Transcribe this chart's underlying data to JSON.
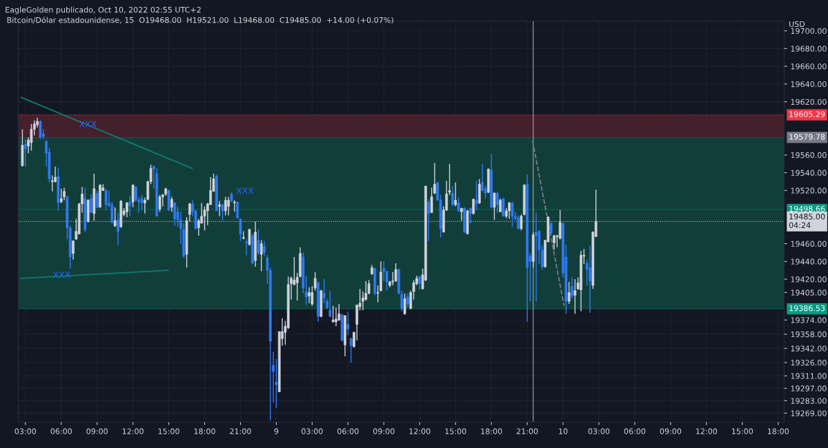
{
  "chart_data": {
    "type": "candlestick",
    "title": "EagleGolden publicado, Oct 10, 2022 02:55 UTC+2",
    "subtitle": "Bitcoin/Dólar estadounidense, 15  O19468.00  H19521.00  L19468.00  C19485.00  +14.00 (+0.07%)",
    "ylabel": "USD",
    "xlim": [
      "2022-10-08T02:24",
      "2022-10-10T18:30"
    ],
    "ylim": [
      19259,
      19711
    ],
    "xticks": [
      {
        "value": "2022-10-08T03:00",
        "label": "03:00"
      },
      {
        "value": "2022-10-08T06:00",
        "label": "06:00"
      },
      {
        "value": "2022-10-08T09:00",
        "label": "09:00"
      },
      {
        "value": "2022-10-08T12:00",
        "label": "12:00"
      },
      {
        "value": "2022-10-08T15:00",
        "label": "15:00"
      },
      {
        "value": "2022-10-08T18:00",
        "label": "18:00"
      },
      {
        "value": "2022-10-08T21:00",
        "label": "21:00"
      },
      {
        "value": "2022-10-09T00:00",
        "label": "9"
      },
      {
        "value": "2022-10-09T03:00",
        "label": "03:00"
      },
      {
        "value": "2022-10-09T06:00",
        "label": "06:00"
      },
      {
        "value": "2022-10-09T09:00",
        "label": "09:00"
      },
      {
        "value": "2022-10-09T12:00",
        "label": "12:00"
      },
      {
        "value": "2022-10-09T15:00",
        "label": "15:00"
      },
      {
        "value": "2022-10-09T18:00",
        "label": "18:00"
      },
      {
        "value": "2022-10-09T21:00",
        "label": "21:00"
      },
      {
        "value": "2022-10-10T00:00",
        "label": "10"
      },
      {
        "value": "2022-10-10T03:00",
        "label": "03:00"
      },
      {
        "value": "2022-10-10T06:00",
        "label": "06:00"
      },
      {
        "value": "2022-10-10T09:00",
        "label": "09:00"
      },
      {
        "value": "2022-10-10T12:00",
        "label": "12:00"
      },
      {
        "value": "2022-10-10T15:00",
        "label": "15:00"
      },
      {
        "value": "2022-10-10T18:00",
        "label": "18:00"
      }
    ],
    "yticks": [
      {
        "value": 19269,
        "label": "19269.00"
      },
      {
        "value": 19283,
        "label": "19283.00"
      },
      {
        "value": 19297,
        "label": "19297.00"
      },
      {
        "value": 19311,
        "label": "19311.00"
      },
      {
        "value": 19326,
        "label": "19326.00"
      },
      {
        "value": 19342,
        "label": "19342.00"
      },
      {
        "value": 19358,
        "label": "19358.00"
      },
      {
        "value": 19374,
        "label": "19374.00"
      },
      {
        "value": 19405,
        "label": "19405.00"
      },
      {
        "value": 19420,
        "label": "19420.00"
      },
      {
        "value": 19440,
        "label": "19440.00"
      },
      {
        "value": 19460,
        "label": "19460.00"
      },
      {
        "value": 19520,
        "label": "19520.00"
      },
      {
        "value": 19540,
        "label": "19540.00"
      },
      {
        "value": 19560,
        "label": "19560.00"
      },
      {
        "value": 19620,
        "label": "19620.00"
      },
      {
        "value": 19640,
        "label": "19640.00"
      },
      {
        "value": 19660,
        "label": "19660.00"
      },
      {
        "value": 19680,
        "label": "19680.00"
      },
      {
        "value": 19700,
        "label": "19700.00"
      }
    ],
    "grid": true,
    "bands": [
      {
        "axis": "y",
        "from": 19579.78,
        "to": 19605.29,
        "color": "#43202b"
      },
      {
        "axis": "y",
        "from": 19386.53,
        "to": 19579.78,
        "color": "#123e3a"
      }
    ],
    "series": [
      {
        "type": "line",
        "color": "#0f7e74",
        "x": [
          "2022-10-08T02:39",
          "2022-10-08T16:57"
        ],
        "values": [
          19625,
          19545
        ]
      },
      {
        "type": "line",
        "color": "#0f7e74",
        "x": [
          "2022-10-08T02:39",
          "2022-10-08T14:57"
        ],
        "values": [
          19421,
          19430
        ]
      },
      {
        "type": "line",
        "color": "#787b86",
        "line_style": "dashed",
        "x": [
          "2022-10-09T21:27",
          "2022-10-10T00:05"
        ],
        "values": [
          19576,
          19390
        ]
      },
      {
        "color": "#d1d4dc",
        "x": [
          "2022-10-08T02:45",
          "2022-10-08T03:15",
          "2022-10-08T03:30",
          "2022-10-08T03:45",
          "2022-10-08T04:00",
          "2022-10-08T05:15",
          "2022-10-08T05:30",
          "2022-10-08T06:00",
          "2022-10-08T06:15",
          "2022-10-08T07:00",
          "2022-10-08T07:15",
          "2022-10-08T07:30",
          "2022-10-08T07:45",
          "2022-10-08T08:15",
          "2022-10-08T08:45",
          "2022-10-08T09:15",
          "2022-10-08T09:30",
          "2022-10-08T10:30",
          "2022-10-08T11:00",
          "2022-10-08T11:15",
          "2022-10-08T11:30",
          "2022-10-08T12:00",
          "2022-10-08T13:00",
          "2022-10-08T13:15",
          "2022-10-08T13:30",
          "2022-10-08T14:15",
          "2022-10-08T14:30",
          "2022-10-08T14:45",
          "2022-10-08T15:15",
          "2022-10-08T16:30",
          "2022-10-08T16:45",
          "2022-10-08T17:30",
          "2022-10-08T17:45",
          "2022-10-08T18:00",
          "2022-10-08T18:15",
          "2022-10-08T18:30",
          "2022-10-08T18:45",
          "2022-10-08T19:15",
          "2022-10-08T19:45",
          "2022-10-08T20:00",
          "2022-10-08T20:30",
          "2022-10-08T21:15",
          "2022-10-08T21:45",
          "2022-10-08T22:15",
          "2022-10-08T22:45",
          "2022-10-09T00:15",
          "2022-10-09T00:30",
          "2022-10-09T00:45",
          "2022-10-09T01:00",
          "2022-10-09T01:15",
          "2022-10-09T01:30",
          "2022-10-09T01:45",
          "2022-10-09T02:00",
          "2022-10-09T02:45",
          "2022-10-09T03:00",
          "2022-10-09T03:15",
          "2022-10-09T03:45",
          "2022-10-09T04:45",
          "2022-10-09T05:00",
          "2022-10-09T05:15",
          "2022-10-09T05:45",
          "2022-10-09T06:30",
          "2022-10-09T06:45",
          "2022-10-09T07:00",
          "2022-10-09T07:15",
          "2022-10-09T07:30",
          "2022-10-09T07:45",
          "2022-10-09T08:00",
          "2022-10-09T08:30",
          "2022-10-09T08:45",
          "2022-10-09T09:30",
          "2022-10-09T09:45",
          "2022-10-09T10:00",
          "2022-10-09T10:45",
          "2022-10-09T11:15",
          "2022-10-09T11:30",
          "2022-10-09T11:45",
          "2022-10-09T12:15",
          "2022-10-09T12:30",
          "2022-10-09T13:00",
          "2022-10-09T13:15",
          "2022-10-09T14:00",
          "2022-10-09T14:15",
          "2022-10-09T14:30",
          "2022-10-09T15:00",
          "2022-10-09T15:30",
          "2022-10-09T16:00",
          "2022-10-09T16:30",
          "2022-10-09T17:00",
          "2022-10-09T17:45",
          "2022-10-09T18:15",
          "2022-10-09T18:45",
          "2022-10-09T19:15",
          "2022-10-09T19:30",
          "2022-10-09T20:30",
          "2022-10-09T20:45",
          "2022-10-09T21:30",
          "2022-10-09T22:30",
          "2022-10-09T22:45",
          "2022-10-09T23:15",
          "2022-10-09T23:30",
          "2022-10-09T23:45",
          "2022-10-10T00:30",
          "2022-10-10T01:00",
          "2022-10-10T01:15",
          "2022-10-10T01:30",
          "2022-10-10T01:45",
          "2022-10-10T02:30",
          "2022-10-10T02:45"
        ],
        "ohlc": [
          [
            19548,
            19589,
            19547,
            19571
          ],
          [
            19570,
            19580,
            19562,
            19577
          ],
          [
            19574,
            19595,
            19565,
            19589
          ],
          [
            19589,
            19599,
            19582,
            19595
          ],
          [
            19594,
            19602,
            19591,
            19598
          ],
          [
            19530,
            19537,
            19519,
            19531
          ],
          [
            19530,
            19547,
            19529,
            19535
          ],
          [
            19507,
            19522,
            19506,
            19511
          ],
          [
            19513,
            19523,
            19509,
            19519
          ],
          [
            19449,
            19464,
            19442,
            19463
          ],
          [
            19465,
            19488,
            19465,
            19474
          ],
          [
            19471,
            19506,
            19471,
            19505
          ],
          [
            19505,
            19524,
            19495,
            19516
          ],
          [
            19485,
            19510,
            19484,
            19509
          ],
          [
            19494,
            19539,
            19486,
            19522
          ],
          [
            19501,
            19527,
            19501,
            19526
          ],
          [
            19520,
            19527,
            19520,
            19523
          ],
          [
            19480,
            19501,
            19479,
            19486
          ],
          [
            19479,
            19509,
            19478,
            19508
          ],
          [
            19493,
            19500,
            19491,
            19497
          ],
          [
            19496,
            19507,
            19490,
            19506
          ],
          [
            19507,
            19527,
            19501,
            19526
          ],
          [
            19506,
            19512,
            19494,
            19509
          ],
          [
            19510,
            19531,
            19509,
            19530
          ],
          [
            19530,
            19549,
            19527,
            19545
          ],
          [
            19499,
            19515,
            19496,
            19513
          ],
          [
            19513,
            19516,
            19502,
            19515
          ],
          [
            19516,
            19523,
            19514,
            19522
          ],
          [
            19501,
            19513,
            19496,
            19510
          ],
          [
            19448,
            19490,
            19433,
            19486
          ],
          [
            19493,
            19506,
            19485,
            19505
          ],
          [
            19478,
            19488,
            19469,
            19486
          ],
          [
            19483,
            19506,
            19483,
            19491
          ],
          [
            19491,
            19502,
            19475,
            19498
          ],
          [
            19497,
            19506,
            19481,
            19505
          ],
          [
            19504,
            19535,
            19504,
            19520
          ],
          [
            19519,
            19539,
            19519,
            19533
          ],
          [
            19502,
            19508,
            19491,
            19504
          ],
          [
            19497,
            19513,
            19492,
            19509
          ],
          [
            19502,
            19513,
            19492,
            19509
          ],
          [
            19506,
            19509,
            19496,
            19507
          ],
          [
            19466,
            19474,
            19465,
            19467
          ],
          [
            19459,
            19477,
            19458,
            19476
          ],
          [
            19441,
            19485,
            19434,
            19473
          ],
          [
            19448,
            19464,
            19429,
            19460
          ],
          [
            19293,
            19361,
            19293,
            19361
          ],
          [
            19353,
            19376,
            19345,
            19361
          ],
          [
            19360,
            19373,
            19346,
            19367
          ],
          [
            19365,
            19423,
            19364,
            19414
          ],
          [
            19415,
            19423,
            19397,
            19421
          ],
          [
            19414,
            19445,
            19413,
            19419
          ],
          [
            19416,
            19427,
            19396,
            19422
          ],
          [
            19423,
            19456,
            19422,
            19449
          ],
          [
            19401,
            19411,
            19393,
            19405
          ],
          [
            19392,
            19412,
            19390,
            19405
          ],
          [
            19410,
            19428,
            19407,
            19421
          ],
          [
            19378,
            19408,
            19377,
            19407
          ],
          [
            19372,
            19390,
            19371,
            19374
          ],
          [
            19372,
            19388,
            19367,
            19375
          ],
          [
            19374,
            19392,
            19373,
            19381
          ],
          [
            19346,
            19379,
            19333,
            19379
          ],
          [
            19344,
            19361,
            19343,
            19360
          ],
          [
            19369,
            19391,
            19351,
            19391
          ],
          [
            19389,
            19409,
            19385,
            19393
          ],
          [
            19395,
            19406,
            19385,
            19399
          ],
          [
            19397,
            19418,
            19396,
            19404
          ],
          [
            19404,
            19419,
            19403,
            19415
          ],
          [
            19426,
            19436,
            19425,
            19433
          ],
          [
            19404,
            19413,
            19394,
            19405
          ],
          [
            19407,
            19440,
            19406,
            19428
          ],
          [
            19413,
            19418,
            19411,
            19417
          ],
          [
            19417,
            19428,
            19413,
            19418
          ],
          [
            19418,
            19438,
            19417,
            19431
          ],
          [
            19381,
            19404,
            19380,
            19398
          ],
          [
            19387,
            19407,
            19386,
            19405
          ],
          [
            19406,
            19419,
            19397,
            19416
          ],
          [
            19415,
            19424,
            19413,
            19421
          ],
          [
            19409,
            19432,
            19409,
            19425
          ],
          [
            19419,
            19525,
            19418,
            19525
          ],
          [
            19495,
            19523,
            19495,
            19513
          ],
          [
            19517,
            19551,
            19516,
            19527
          ],
          [
            19473,
            19502,
            19473,
            19498
          ],
          [
            19498,
            19531,
            19497,
            19516
          ],
          [
            19518,
            19550,
            19515,
            19520
          ],
          [
            19504,
            19529,
            19502,
            19509
          ],
          [
            19496,
            19500,
            19486,
            19500
          ],
          [
            19471,
            19498,
            19471,
            19497
          ],
          [
            19494,
            19511,
            19493,
            19510
          ],
          [
            19506,
            19533,
            19505,
            19527
          ],
          [
            19518,
            19545,
            19517,
            19544
          ],
          [
            19501,
            19518,
            19487,
            19517
          ],
          [
            19496,
            19511,
            19496,
            19509
          ],
          [
            19491,
            19500,
            19489,
            19497
          ],
          [
            19497,
            19507,
            19488,
            19506
          ],
          [
            19477,
            19493,
            19475,
            19491
          ],
          [
            19493,
            19527,
            19492,
            19526
          ],
          [
            19440,
            19473,
            19433,
            19470
          ],
          [
            19434,
            19464,
            19433,
            19464
          ],
          [
            19462,
            19491,
            19462,
            19490
          ],
          [
            19461,
            19470,
            19453,
            19469
          ],
          [
            19468,
            19470,
            19456,
            19469
          ],
          [
            19466,
            19498,
            19465,
            19484
          ],
          [
            19395,
            19417,
            19392,
            19405
          ],
          [
            19402,
            19420,
            19381,
            19407
          ],
          [
            19409,
            19422,
            19408,
            19416
          ],
          [
            19408,
            19452,
            19384,
            19447
          ],
          [
            19446,
            19454,
            19437,
            19447
          ],
          [
            19413,
            19474,
            19409,
            19473
          ],
          [
            19468,
            19521,
            19468,
            19485
          ]
        ]
      },
      {
        "color": "#2f7bf5",
        "x": [
          "2022-10-08T03:00",
          "2022-10-08T04:15",
          "2022-10-08T04:30",
          "2022-10-08T04:45",
          "2022-10-08T05:00",
          "2022-10-08T05:45",
          "2022-10-08T06:30",
          "2022-10-08T06:45",
          "2022-10-08T08:00",
          "2022-10-08T08:30",
          "2022-10-08T09:00",
          "2022-10-08T09:45",
          "2022-10-08T10:00",
          "2022-10-08T10:15",
          "2022-10-08T10:45",
          "2022-10-08T11:45",
          "2022-10-08T12:15",
          "2022-10-08T12:30",
          "2022-10-08T12:45",
          "2022-10-08T13:45",
          "2022-10-08T14:00",
          "2022-10-08T15:00",
          "2022-10-08T15:30",
          "2022-10-08T15:45",
          "2022-10-08T16:00",
          "2022-10-08T16:15",
          "2022-10-08T17:00",
          "2022-10-08T17:15",
          "2022-10-08T19:00",
          "2022-10-08T19:30",
          "2022-10-08T20:15",
          "2022-10-08T20:45",
          "2022-10-08T21:00",
          "2022-10-08T21:30",
          "2022-10-08T22:00",
          "2022-10-08T22:30",
          "2022-10-08T23:00",
          "2022-10-08T23:15",
          "2022-10-08T23:30",
          "2022-10-08T23:45",
          "2022-10-09T00:00",
          "2022-10-09T02:15",
          "2022-10-09T02:30",
          "2022-10-09T03:30",
          "2022-10-09T04:00",
          "2022-10-09T04:15",
          "2022-10-09T04:30",
          "2022-10-09T05:30",
          "2022-10-09T06:00",
          "2022-10-09T06:15",
          "2022-10-09T08:15",
          "2022-10-09T09:00",
          "2022-10-09T09:15",
          "2022-10-09T10:15",
          "2022-10-09T10:30",
          "2022-10-09T11:00",
          "2022-10-09T12:00",
          "2022-10-09T12:45",
          "2022-10-09T13:30",
          "2022-10-09T13:45",
          "2022-10-09T14:45",
          "2022-10-09T15:15",
          "2022-10-09T15:45",
          "2022-10-09T16:15",
          "2022-10-09T16:45",
          "2022-10-09T17:15",
          "2022-10-09T17:30",
          "2022-10-09T18:00",
          "2022-10-09T18:30",
          "2022-10-09T19:00",
          "2022-10-09T19:45",
          "2022-10-09T20:00",
          "2022-10-09T20:15",
          "2022-10-09T21:00",
          "2022-10-09T21:15",
          "2022-10-09T21:45",
          "2022-10-09T22:00",
          "2022-10-09T22:15",
          "2022-10-09T23:00",
          "2022-10-10T00:00",
          "2022-10-10T00:15",
          "2022-10-10T00:45",
          "2022-10-10T02:00",
          "2022-10-10T02:15"
        ],
        "ohlc": [
          [
            19572,
            19578,
            19547,
            19567
          ],
          [
            19598,
            19599,
            19578,
            19580
          ],
          [
            19584,
            19589,
            19578,
            19581
          ],
          [
            19575,
            19577,
            19547,
            19562
          ],
          [
            19563,
            19568,
            19529,
            19533
          ],
          [
            19536,
            19546,
            19498,
            19506
          ],
          [
            19513,
            19514,
            19465,
            19478
          ],
          [
            19478,
            19480,
            19432,
            19445
          ],
          [
            19511,
            19523,
            19473,
            19476
          ],
          [
            19511,
            19516,
            19495,
            19495
          ],
          [
            19517,
            19520,
            19500,
            19501
          ],
          [
            19520,
            19522,
            19498,
            19504
          ],
          [
            19506,
            19520,
            19501,
            19503
          ],
          [
            19504,
            19507,
            19483,
            19484
          ],
          [
            19487,
            19495,
            19458,
            19474
          ],
          [
            19507,
            19514,
            19491,
            19503
          ],
          [
            19524,
            19525,
            19508,
            19509
          ],
          [
            19509,
            19513,
            19495,
            19507
          ],
          [
            19511,
            19515,
            19498,
            19506
          ],
          [
            19547,
            19548,
            19522,
            19544
          ],
          [
            19539,
            19545,
            19491,
            19491
          ],
          [
            19520,
            19521,
            19497,
            19498
          ],
          [
            19506,
            19507,
            19480,
            19488
          ],
          [
            19496,
            19502,
            19479,
            19487
          ],
          [
            19487,
            19496,
            19460,
            19477
          ],
          [
            19476,
            19483,
            19444,
            19446
          ],
          [
            19505,
            19509,
            19491,
            19496
          ],
          [
            19497,
            19498,
            19476,
            19477
          ],
          [
            19536,
            19538,
            19497,
            19497
          ],
          [
            19504,
            19505,
            19486,
            19497
          ],
          [
            19516,
            19518,
            19507,
            19508
          ],
          [
            19507,
            19507,
            19489,
            19489
          ],
          [
            19488,
            19488,
            19463,
            19471
          ],
          [
            19462,
            19465,
            19447,
            19461
          ],
          [
            19469,
            19471,
            19437,
            19438
          ],
          [
            19464,
            19476,
            19448,
            19449
          ],
          [
            19457,
            19463,
            19446,
            19450
          ],
          [
            19444,
            19447,
            19415,
            19430
          ],
          [
            19430,
            19433,
            19261,
            19350
          ],
          [
            19323,
            19338,
            19281,
            19316
          ],
          [
            19304,
            19330,
            19275,
            19301
          ],
          [
            19445,
            19450,
            19404,
            19410
          ],
          [
            19406,
            19424,
            19391,
            19400
          ],
          [
            19416,
            19418,
            19372,
            19378
          ],
          [
            19404,
            19420,
            19393,
            19399
          ],
          [
            19395,
            19398,
            19386,
            19388
          ],
          [
            19385,
            19407,
            19377,
            19378
          ],
          [
            19380,
            19381,
            19350,
            19351
          ],
          [
            19369,
            19383,
            19357,
            19364
          ],
          [
            19353,
            19354,
            19326,
            19345
          ],
          [
            19432,
            19433,
            19402,
            19404
          ],
          [
            19432,
            19440,
            19418,
            19429
          ],
          [
            19429,
            19429,
            19407,
            19417
          ],
          [
            19431,
            19432,
            19403,
            19404
          ],
          [
            19403,
            19407,
            19384,
            19387
          ],
          [
            19400,
            19404,
            19388,
            19392
          ],
          [
            19423,
            19424,
            19408,
            19415
          ],
          [
            19507,
            19510,
            19463,
            19494
          ],
          [
            19529,
            19529,
            19509,
            19509
          ],
          [
            19509,
            19515,
            19467,
            19477
          ],
          [
            19517,
            19525,
            19502,
            19504
          ],
          [
            19506,
            19512,
            19496,
            19497
          ],
          [
            19500,
            19501,
            19472,
            19473
          ],
          [
            19500,
            19500,
            19483,
            19494
          ],
          [
            19509,
            19531,
            19498,
            19505
          ],
          [
            19529,
            19550,
            19519,
            19520
          ],
          [
            19522,
            19525,
            19511,
            19517
          ],
          [
            19543,
            19561,
            19500,
            19501
          ],
          [
            19517,
            19518,
            19495,
            19504
          ],
          [
            19511,
            19511,
            19491,
            19491
          ],
          [
            19506,
            19507,
            19479,
            19491
          ],
          [
            19491,
            19496,
            19487,
            19488
          ],
          [
            19489,
            19492,
            19476,
            19477
          ],
          [
            19527,
            19538,
            19372,
            19433
          ],
          [
            19446,
            19449,
            19395,
            19440
          ],
          [
            19473,
            19495,
            19395,
            19469
          ],
          [
            19474,
            19475,
            19437,
            19453
          ],
          [
            19453,
            19458,
            19431,
            19434
          ],
          [
            19483,
            19484,
            19470,
            19472
          ],
          [
            19483,
            19484,
            19422,
            19427
          ],
          [
            19445,
            19459,
            19381,
            19395
          ],
          [
            19412,
            19422,
            19398,
            19401
          ],
          [
            19438,
            19442,
            19413,
            19431
          ],
          [
            19433,
            19458,
            19382,
            19418
          ]
        ]
      }
    ],
    "ref_lines": [
      {
        "axis": "y",
        "value": 19605.29,
        "label": "19605.29",
        "color": "#f23645",
        "line_style": "dotted"
      },
      {
        "axis": "y",
        "value": 19579.78,
        "label": "19579.78",
        "color": "#787b86",
        "line_style": "dotted"
      },
      {
        "axis": "y",
        "value": 19498.66,
        "label": "19498.66",
        "color": "#089981",
        "line_style": "dotted"
      },
      {
        "axis": "y",
        "value": 19485.0,
        "label": "19485.00\n04:24",
        "color": "#d1d4dc",
        "line_style": "dotted"
      },
      {
        "axis": "y",
        "value": 19386.53,
        "label": "19386.53",
        "color": "#089981",
        "line_style": "dotted"
      },
      {
        "axis": "x",
        "value": "2022-10-09T21:30",
        "color": "#b2b5be",
        "line_style": "solid"
      }
    ],
    "annotations": [
      {
        "text": "XXX",
        "x": "2022-10-08T08:14",
        "y": 19594
      },
      {
        "text": "XXX",
        "x": "2022-10-08T06:02",
        "y": 19424
      },
      "XXX"
    ]
  }
}
